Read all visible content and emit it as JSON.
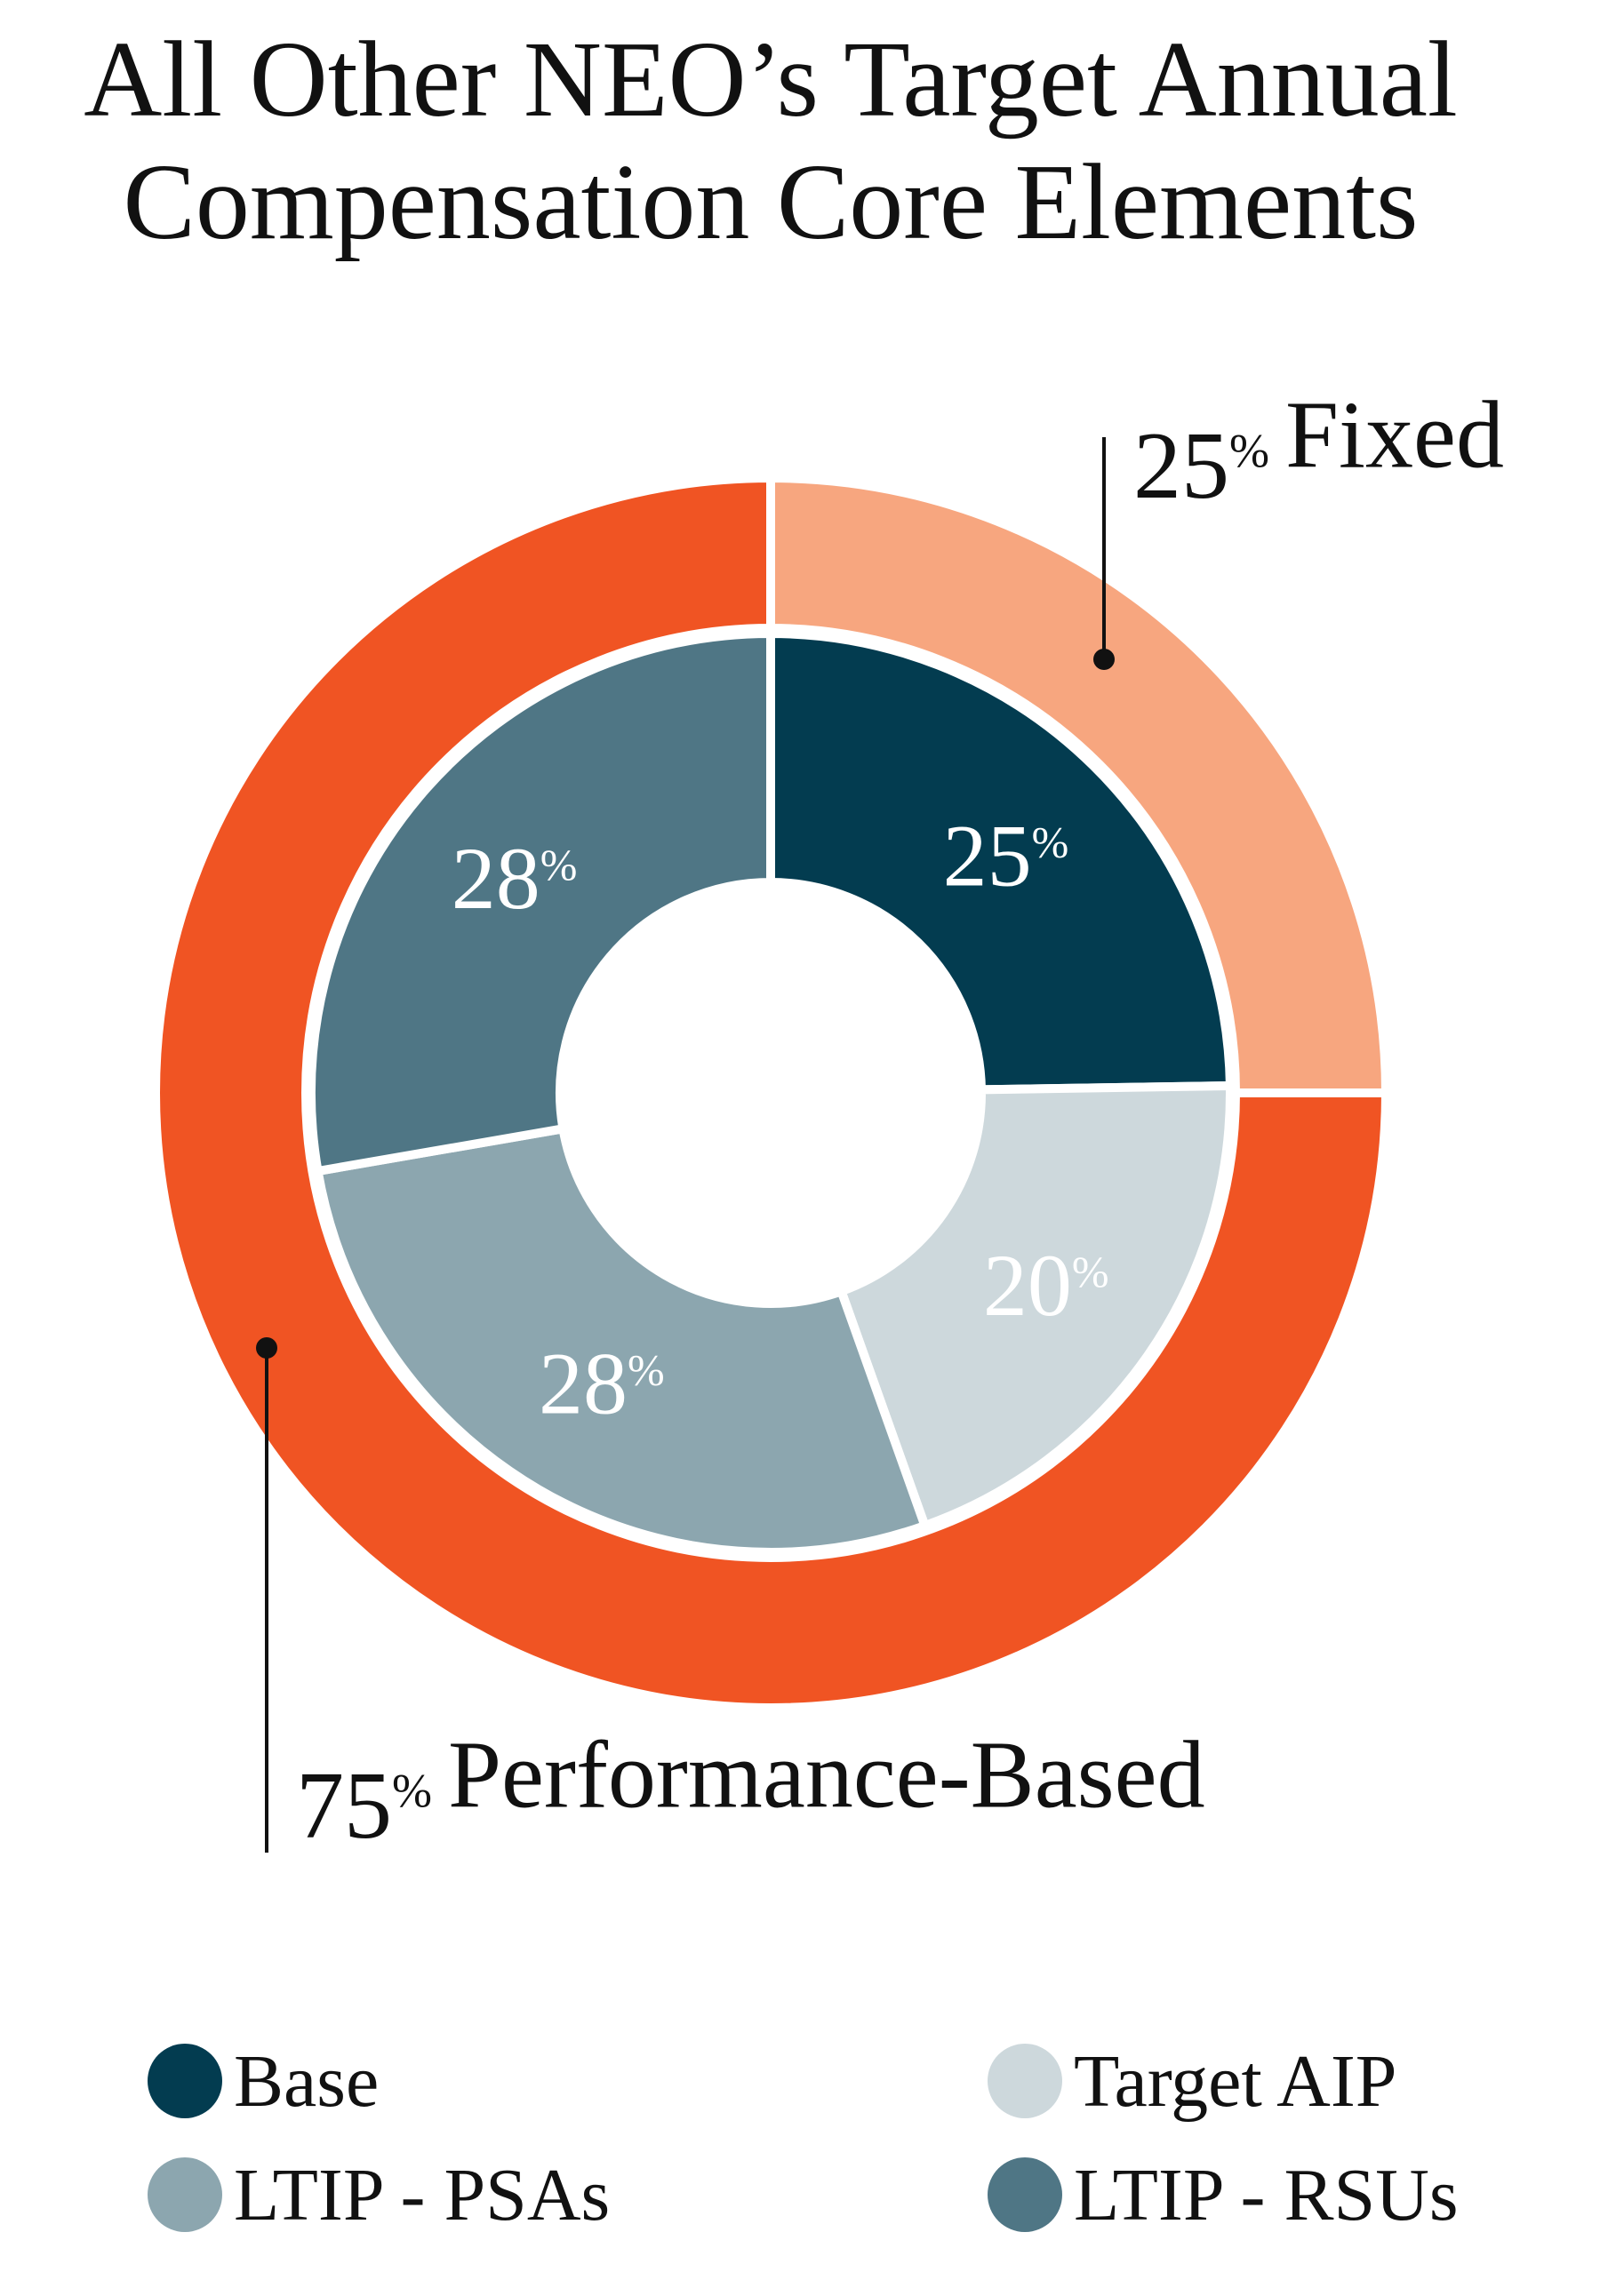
{
  "chart_data": {
    "type": "nested_donut",
    "title": [
      "All Other NEO’s Target Annual",
      "Compensation Core Elements"
    ],
    "rings": [
      {
        "categories": [
          "Base",
          "Target AIP",
          "LTIP - PSAs",
          "LTIP - RSUs"
        ],
        "values": [
          25,
          20,
          28,
          28
        ],
        "value_labels": [
          "25%",
          "20%",
          "28%",
          "28%"
        ],
        "colors": [
          "#033c50",
          "#cdd8dc",
          "#8ca6af",
          "#4f7685"
        ]
      },
      {
        "categories": [
          "Fixed",
          "Performance-Based"
        ],
        "values": [
          25,
          75
        ],
        "value_labels": [
          "25%",
          "75%"
        ],
        "colors": [
          "#f7a67f",
          "#f05423"
        ]
      }
    ]
  }
}
